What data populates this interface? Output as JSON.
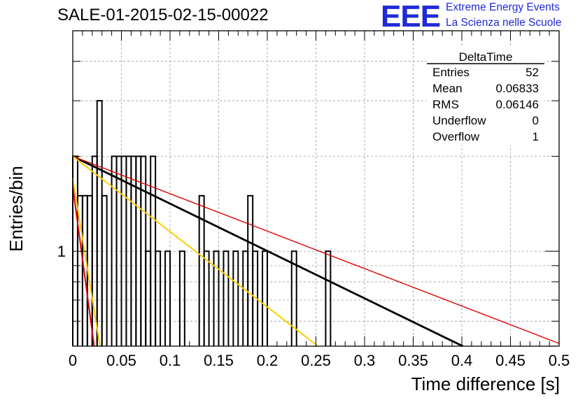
{
  "title": "SALE-01-2015-02-15-00022",
  "logo": {
    "mark": "EEE",
    "line1": "Extreme Energy Events",
    "line2": "La Scienza nelle Scuole",
    "color": "#1f2bd6"
  },
  "stats": {
    "name": "DeltaTime",
    "rows": [
      {
        "label": "Entries",
        "value": "52"
      },
      {
        "label": "Mean",
        "value": "0.06833"
      },
      {
        "label": "RMS",
        "value": "0.06146"
      },
      {
        "label": "Underflow",
        "value": "0"
      },
      {
        "label": "Overflow",
        "value": "1"
      }
    ]
  },
  "chart_data": {
    "type": "histogram",
    "xlabel": "Time difference [s]",
    "ylabel": "Entries/bin",
    "xlim": [
      0,
      0.5
    ],
    "ylim": [
      0.5,
      5.0
    ],
    "ylog": true,
    "grid": true,
    "xticks": [
      "0",
      "0.05",
      "0.1",
      "0.15",
      "0.2",
      "0.25",
      "0.3",
      "0.35",
      "0.4",
      "0.45",
      "0.5"
    ],
    "yticks_labeled": [
      "1"
    ],
    "bin_width": 0.005,
    "bins": [
      {
        "x": 0.0,
        "y": 2
      },
      {
        "x": 0.005,
        "y": 1.5
      },
      {
        "x": 0.01,
        "y": 1.5
      },
      {
        "x": 0.015,
        "y": 1.5
      },
      {
        "x": 0.02,
        "y": 2
      },
      {
        "x": 0.025,
        "y": 3
      },
      {
        "x": 0.03,
        "y": 1.5
      },
      {
        "x": 0.04,
        "y": 2
      },
      {
        "x": 0.045,
        "y": 2
      },
      {
        "x": 0.05,
        "y": 2
      },
      {
        "x": 0.055,
        "y": 2
      },
      {
        "x": 0.06,
        "y": 2
      },
      {
        "x": 0.065,
        "y": 2
      },
      {
        "x": 0.07,
        "y": 2
      },
      {
        "x": 0.075,
        "y": 1
      },
      {
        "x": 0.08,
        "y": 2
      },
      {
        "x": 0.085,
        "y": 1
      },
      {
        "x": 0.095,
        "y": 1
      },
      {
        "x": 0.11,
        "y": 1
      },
      {
        "x": 0.13,
        "y": 1.5
      },
      {
        "x": 0.135,
        "y": 1
      },
      {
        "x": 0.145,
        "y": 1
      },
      {
        "x": 0.155,
        "y": 1
      },
      {
        "x": 0.165,
        "y": 1
      },
      {
        "x": 0.175,
        "y": 1
      },
      {
        "x": 0.18,
        "y": 1.5
      },
      {
        "x": 0.185,
        "y": 1
      },
      {
        "x": 0.195,
        "y": 1
      },
      {
        "x": 0.225,
        "y": 1
      },
      {
        "x": 0.26,
        "y": 1
      }
    ],
    "series": [
      {
        "color": "#000000",
        "x": [
          0.0,
          0.401
        ],
        "y": [
          2.0,
          0.5
        ],
        "width": 2.8
      },
      {
        "color": "#dd0000",
        "x": [
          0.0,
          0.5
        ],
        "y": [
          2.0,
          0.51
        ],
        "width": 1.4
      },
      {
        "color": "#ffcc00",
        "x": [
          0.0,
          0.252
        ],
        "y": [
          2.0,
          0.5
        ],
        "width": 2.0
      },
      {
        "color": "#ffcc00",
        "x": [
          0.0,
          0.028
        ],
        "y": [
          1.7,
          0.5
        ],
        "width": 2.0
      },
      {
        "color": "#dd0000",
        "x": [
          0.0,
          0.022
        ],
        "y": [
          1.6,
          0.5
        ],
        "width": 2.0
      }
    ]
  }
}
